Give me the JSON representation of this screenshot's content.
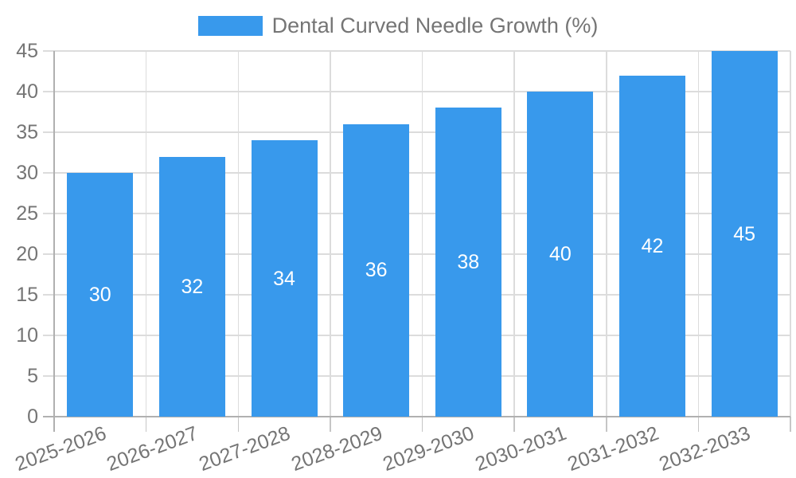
{
  "legend": {
    "label": "Dental Curved Needle Growth (%)"
  },
  "chart_data": {
    "type": "bar",
    "title": "Dental Curved Needle Growth (%)",
    "categories": [
      "2025-2026",
      "2026-2027",
      "2027-2028",
      "2028-2029",
      "2029-2030",
      "2030-2031",
      "2031-2032",
      "2032-2033"
    ],
    "values": [
      30,
      32,
      34,
      36,
      38,
      40,
      42,
      45
    ],
    "bar_value_labels": [
      "30",
      "32",
      "34",
      "36",
      "38",
      "40",
      "42",
      "45"
    ],
    "xlabel": "",
    "ylabel": "",
    "ylim": [
      0,
      45
    ],
    "ytick_step": 5,
    "yticks": [
      0,
      5,
      10,
      15,
      20,
      25,
      30,
      35,
      40,
      45
    ],
    "grid": "on",
    "legend_position": "top-center",
    "x_label_rotation_deg": -20,
    "value_labels_position": "centered-inside-bars"
  },
  "colors": {
    "bar": "#3899ec",
    "grid": "#dcdcdc",
    "tick": "#c6c6c6",
    "axis": "#b0b0b0",
    "tick_text": "#757575",
    "bar_label_text": "#ffffff",
    "background": "#ffffff"
  }
}
